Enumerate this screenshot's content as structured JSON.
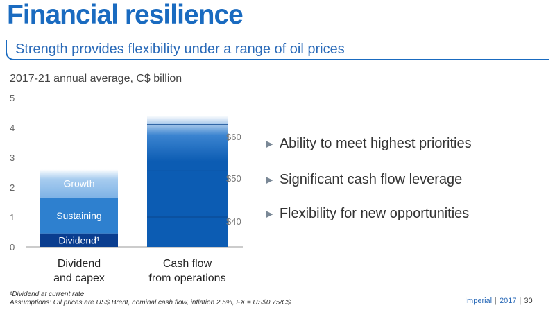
{
  "title": "Financial resilience",
  "subtitle": "Strength provides flexibility under a range of oil prices",
  "chart_data": {
    "type": "bar",
    "unit_label": "2017-21 annual average, C$ billion",
    "ylim": [
      0,
      5
    ],
    "yticks": [
      "0",
      "1",
      "2",
      "3",
      "4",
      "5"
    ],
    "categories": [
      "Dividend\nand capex",
      "Cash flow\nfrom operations"
    ],
    "stacked_bar": {
      "segments": [
        {
          "name": "Dividend¹",
          "value": 0.45,
          "color": "#0a3d8f"
        },
        {
          "name": "Sustaining",
          "value": 1.2,
          "color": "#2e80cf"
        },
        {
          "name": "Growth",
          "value": 0.95,
          "color": "#a7ccef"
        }
      ]
    },
    "cash_flow_bar": {
      "value": 4.4,
      "color": "#0c5cb3",
      "price_levels": [
        {
          "label": "$60",
          "value": 4.1
        },
        {
          "label": "$50",
          "value": 2.55
        },
        {
          "label": "$40",
          "value": 1.0
        }
      ]
    }
  },
  "bullets": [
    "Ability to meet highest priorities",
    "Significant cash flow leverage",
    "Flexibility for new opportunities"
  ],
  "bullet_marker": "►",
  "footnotes": [
    "¹Dividend at current rate",
    "Assumptions: Oil prices are US$ Brent, nominal cash flow, inflation 2.5%, FX = US$0.75/C$"
  ],
  "footer": {
    "company": "Imperial",
    "year": "2017",
    "page": "30"
  }
}
